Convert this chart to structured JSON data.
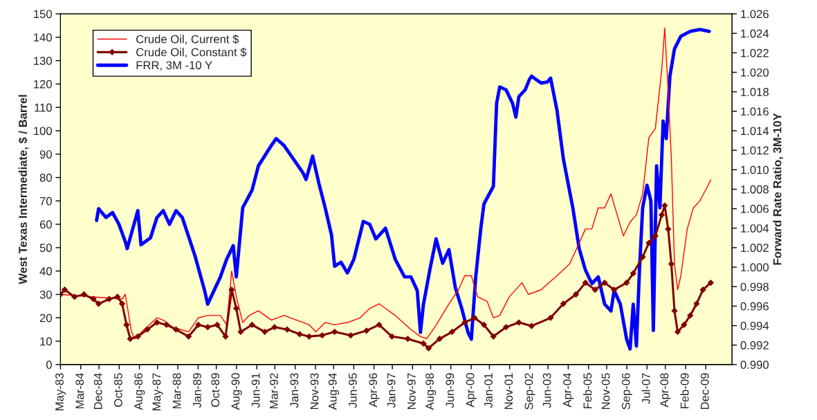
{
  "chart_data": {
    "type": "line",
    "ylabel": "West Texas Intermediate, $ / Barrel",
    "y2label": "Forward Rate Ratio, 3M-10Y",
    "series": [
      {
        "name": "Crude Oil, Current $",
        "color": "#ff0000",
        "marker": "none",
        "x": [
          "1983-05-01",
          "1985-11-14",
          "1986-01-01",
          "1986-04-04",
          "1986-05-21",
          "1986-10-11",
          "1987-04-22",
          "1987-07-26",
          "1987-12-16",
          "1988-08-10",
          "1989-01-04",
          "1989-05-25",
          "1989-12-02",
          "1990-03-05",
          "1990-05-21",
          "1990-07-29",
          "1990-11-03",
          "1991-02-07",
          "1991-06-27",
          "1992-01-08",
          "1992-07-15",
          "1993-01-22",
          "1993-07-29",
          "1993-11-07",
          "1994-03-27",
          "1994-08-17",
          "1995-02-25",
          "1995-09-05",
          "1996-01-26",
          "1996-06-16",
          "1996-09-20",
          "1997-02-14",
          "1997-10-08",
          "1998-02-28",
          "1998-06-02",
          "1998-10-26",
          "1999-05-03",
          "1999-09-23",
          "1999-12-27",
          "2000-04-04",
          "2000-07-08",
          "2000-11-28",
          "2001-03-02",
          "2001-06-05",
          "2001-10-28",
          "2002-05-07",
          "2002-08-10",
          "2003-02-17",
          "2003-10-15",
          "2004-04-22",
          "2004-09-13",
          "2004-12-16",
          "2005-03-23",
          "2005-06-27",
          "2005-10-01",
          "2006-01-04",
          "2006-04-08",
          "2006-07-11",
          "2006-10-19",
          "2007-01-22",
          "2007-04-26",
          "2007-07-28",
          "2007-11-03",
          "2008-02-07",
          "2008-03-23",
          "2008-05-14",
          "2008-07-01",
          "2008-08-17",
          "2008-10-04",
          "2008-11-21",
          "2009-02-25",
          "2009-05-28",
          "2009-09-02",
          "2009-12-05",
          "2010-02-14"
        ],
        "values": [
          30,
          28,
          30,
          14,
          11,
          15,
          20,
          19,
          16,
          14,
          20,
          21,
          21,
          17,
          40,
          29,
          18,
          21,
          23,
          19,
          21,
          19,
          17,
          14,
          18,
          17,
          18,
          20,
          24,
          26,
          24,
          21,
          15,
          12,
          11,
          17,
          26,
          32,
          38,
          38,
          29,
          27,
          20,
          21,
          29,
          35,
          30,
          32,
          38,
          43,
          52,
          58,
          58,
          67,
          67,
          73,
          64,
          55,
          61,
          64,
          73,
          97,
          101,
          126,
          144,
          117,
          88,
          43,
          32,
          38,
          58,
          67,
          70,
          75,
          79
        ]
      },
      {
        "name": "Crude Oil, Constant $",
        "color": "#800000",
        "marker": "diamond",
        "x": [
          "1983-05-01",
          "1983-07-04",
          "1983-11-28",
          "1984-04-19",
          "1984-09-09",
          "1984-11-25",
          "1985-05-03",
          "1985-09-05",
          "1985-11-14",
          "1986-01-19",
          "1986-03-16",
          "1986-07-08",
          "1986-11-28",
          "1987-04-22",
          "1987-09-13",
          "1988-02-03",
          "1988-08-10",
          "1989-01-04",
          "1989-05-25",
          "1989-10-15",
          "1990-02-17",
          "1990-05-21",
          "1990-07-29",
          "1990-10-04",
          "1991-03-23",
          "1991-10-01",
          "1992-02-25",
          "1992-09-02",
          "1993-03-09",
          "1993-07-29",
          "1994-02-10",
          "1994-08-17",
          "1995-04-15",
          "1995-12-09",
          "1996-06-16",
          "1996-12-27",
          "1997-08-21",
          "1998-04-15",
          "1998-07-01",
          "1998-12-13",
          "1999-06-20",
          "1999-12-27",
          "2000-05-21",
          "2000-10-11",
          "2001-03-02",
          "2001-09-09",
          "2002-03-20",
          "2002-09-27",
          "2003-07-11",
          "2004-01-19",
          "2004-07-26",
          "2004-12-16",
          "2005-05-10",
          "2005-10-01",
          "2006-02-21",
          "2006-08-28",
          "2006-12-05",
          "2007-04-26",
          "2007-07-28",
          "2007-11-03",
          "2008-02-07",
          "2008-03-23",
          "2008-05-14",
          "2008-07-01",
          "2008-08-17",
          "2008-10-04",
          "2009-01-08",
          "2009-04-11",
          "2009-07-15",
          "2009-10-19",
          "2010-02-14"
        ],
        "values": [
          30,
          32,
          29,
          30,
          28,
          26,
          28,
          29,
          26,
          17,
          11,
          12,
          15,
          18,
          17,
          15,
          12,
          17,
          16,
          17,
          12,
          32,
          24,
          14,
          17,
          14,
          16,
          15,
          13,
          12,
          12.5,
          14,
          12.5,
          14.5,
          17,
          12,
          11,
          9,
          7,
          11,
          14,
          18,
          20,
          17,
          12,
          16,
          18,
          16.5,
          20,
          26,
          30,
          35,
          32,
          35,
          32,
          35,
          39,
          46,
          52,
          55,
          64,
          68,
          58,
          43,
          23,
          14,
          17,
          21,
          26,
          32,
          35
        ]
      },
      {
        "name": "FRR, 3M -10 Y",
        "color": "#0000ff",
        "marker": "none",
        "axis": "y2",
        "x": [
          "1984-10-26",
          "1984-11-25",
          "1985-03-16",
          "1985-06-23",
          "1985-09-27",
          "1986-01-01",
          "1986-01-29",
          "1986-07-08",
          "1986-08-25",
          "1987-01-15",
          "1987-04-22",
          "1987-07-26",
          "1987-10-28",
          "1988-02-03",
          "1988-05-07",
          "1988-11-17",
          "1989-04-08",
          "1989-05-25",
          "1989-08-28",
          "1989-12-02",
          "1990-03-05",
          "1990-06-13",
          "1990-07-29",
          "1990-11-03",
          "1991-03-23",
          "1991-06-27",
          "1992-01-08",
          "1992-03-20",
          "1992-07-15",
          "1992-12-05",
          "1993-04-26",
          "1993-06-13",
          "1993-09-20",
          "1993-12-23",
          "1994-03-27",
          "1994-07-01",
          "1994-08-17",
          "1994-11-21",
          "1995-02-25",
          "1995-06-02",
          "1995-10-22",
          "1996-01-26",
          "1996-04-28",
          "1996-09-20",
          "1997-02-14",
          "1997-07-04",
          "1997-10-08",
          "1998-01-11",
          "1998-02-28",
          "1998-04-15",
          "1998-07-19",
          "1998-10-22",
          "1999-01-28",
          "1999-05-03",
          "1999-08-07",
          "1999-11-10",
          "2000-02-14",
          "2000-04-04",
          "2000-06-09",
          "2000-08-25",
          "2000-10-11",
          "2001-03-02",
          "2001-04-19",
          "2001-06-05",
          "2001-09-09",
          "2001-12-16",
          "2002-02-03",
          "2002-03-20",
          "2002-06-23",
          "2002-08-28",
          "2002-09-27",
          "2003-02-17",
          "2003-05-21",
          "2003-07-11",
          "2003-10-15",
          "2004-01-19",
          "2004-06-09",
          "2004-09-13",
          "2004-12-16",
          "2005-03-23",
          "2005-06-27",
          "2005-10-01",
          "2006-01-04",
          "2006-02-21",
          "2006-05-25",
          "2006-08-28",
          "2006-10-19",
          "2006-12-05",
          "2007-01-22",
          "2007-03-09",
          "2007-04-26",
          "2007-07-01",
          "2007-08-28",
          "2007-10-04",
          "2007-11-21",
          "2008-01-11",
          "2008-02-28",
          "2008-04-15",
          "2008-06-09",
          "2008-08-17",
          "2008-11-21",
          "2009-04-11",
          "2009-09-02",
          "2010-01-22"
        ],
        "values": [
          1.0048,
          1.006,
          1.0051,
          1.0056,
          1.0044,
          1.0026,
          1.0019,
          1.0058,
          1.0023,
          1.003,
          1.0051,
          1.0058,
          1.0044,
          1.0058,
          1.0051,
          1.0011,
          0.9976,
          0.9962,
          0.9976,
          0.999,
          1.0008,
          1.0022,
          0.999,
          1.0061,
          1.0079,
          1.0104,
          1.0125,
          1.0132,
          1.0125,
          1.0111,
          1.0097,
          1.009,
          1.0114,
          1.0086,
          1.0061,
          1.0033,
          1.0001,
          1.0005,
          0.9994,
          1.0008,
          1.0047,
          1.0044,
          1.0029,
          1.004,
          1.0008,
          0.999,
          0.999,
          0.9976,
          0.9933,
          0.9962,
          0.9997,
          1.0029,
          1.0004,
          1.0018,
          0.9979,
          0.9958,
          0.9933,
          0.9926,
          0.999,
          1.004,
          1.0065,
          1.0083,
          1.0168,
          1.0185,
          1.0182,
          1.0168,
          1.0154,
          1.0175,
          1.0182,
          1.0193,
          1.0196,
          1.0189,
          1.019,
          1.0194,
          1.0161,
          1.0111,
          1.0061,
          1.0019,
          0.9997,
          0.9983,
          0.999,
          0.9962,
          0.9955,
          0.9976,
          0.9962,
          0.9926,
          0.9916,
          0.9962,
          0.9919,
          0.9997,
          1.0061,
          1.0084,
          1.0068,
          0.9935,
          1.0104,
          1.0061,
          1.015,
          1.0132,
          1.0196,
          1.0224,
          1.0237,
          1.0242,
          1.0244,
          1.0242
        ]
      }
    ],
    "xlim": [
      "1983-05-01",
      "2010-12-31"
    ],
    "xticks": [
      {
        "value": "1983-05-01",
        "label": "May-83"
      },
      {
        "value": "1984-03-01",
        "label": "Mar-84"
      },
      {
        "value": "1984-12-01",
        "label": "Dec-84"
      },
      {
        "value": "1985-10-01",
        "label": "Oct-85"
      },
      {
        "value": "1986-08-01",
        "label": "Aug-86"
      },
      {
        "value": "1987-05-01",
        "label": "May-87"
      },
      {
        "value": "1988-03-01",
        "label": "Mar-88"
      },
      {
        "value": "1989-01-01",
        "label": "Jan-89"
      },
      {
        "value": "1989-10-01",
        "label": "Oct-89"
      },
      {
        "value": "1990-08-01",
        "label": "Aug-90"
      },
      {
        "value": "1991-06-01",
        "label": "Jun-91"
      },
      {
        "value": "1992-03-01",
        "label": "Mar-92"
      },
      {
        "value": "1993-01-01",
        "label": "Jan-93"
      },
      {
        "value": "1993-11-01",
        "label": "Nov-93"
      },
      {
        "value": "1994-08-01",
        "label": "Aug-94"
      },
      {
        "value": "1995-06-01",
        "label": "Jun-95"
      },
      {
        "value": "1996-04-01",
        "label": "Apr-96"
      },
      {
        "value": "1997-01-01",
        "label": "Jan-97"
      },
      {
        "value": "1997-11-01",
        "label": "Nov-97"
      },
      {
        "value": "1998-08-01",
        "label": "Aug-98"
      },
      {
        "value": "1999-06-01",
        "label": "Jun-99"
      },
      {
        "value": "2000-04-01",
        "label": "Apr-00"
      },
      {
        "value": "2001-01-01",
        "label": "Jan-01"
      },
      {
        "value": "2001-11-01",
        "label": "Nov-01"
      },
      {
        "value": "2002-09-01",
        "label": "Sep-02"
      },
      {
        "value": "2003-06-01",
        "label": "Jun-03"
      },
      {
        "value": "2004-04-01",
        "label": "Apr-04"
      },
      {
        "value": "2005-02-01",
        "label": "Feb-05"
      },
      {
        "value": "2005-11-01",
        "label": "Nov-05"
      },
      {
        "value": "2006-09-01",
        "label": "Sep-06"
      },
      {
        "value": "2007-07-01",
        "label": "Jul-07"
      },
      {
        "value": "2008-04-01",
        "label": "Apr-08"
      },
      {
        "value": "2009-02-01",
        "label": "Feb-09"
      },
      {
        "value": "2009-12-01",
        "label": "Dec-09"
      }
    ],
    "ylim": [
      0,
      150
    ],
    "yticks": [
      0,
      10,
      20,
      30,
      40,
      50,
      60,
      70,
      80,
      90,
      100,
      110,
      120,
      130,
      140,
      150
    ],
    "y2lim": [
      0.99,
      1.026
    ],
    "y2ticks": [
      {
        "value": 0.99,
        "label": "0.990"
      },
      {
        "value": 0.992,
        "label": "0.992"
      },
      {
        "value": 0.994,
        "label": "0.994"
      },
      {
        "value": 0.996,
        "label": "0.996"
      },
      {
        "value": 0.998,
        "label": "0.998"
      },
      {
        "value": 1.0,
        "label": "1.000"
      },
      {
        "value": 1.002,
        "label": "1.002"
      },
      {
        "value": 1.004,
        "label": "1.004"
      },
      {
        "value": 1.006,
        "label": "1.006"
      },
      {
        "value": 1.008,
        "label": "1.008"
      },
      {
        "value": 1.01,
        "label": "1.010"
      },
      {
        "value": 1.012,
        "label": "1.012"
      },
      {
        "value": 1.014,
        "label": "1.014"
      },
      {
        "value": 1.016,
        "label": "1.016"
      },
      {
        "value": 1.018,
        "label": "1.018"
      },
      {
        "value": 1.02,
        "label": "1.020"
      },
      {
        "value": 1.022,
        "label": "1.022"
      },
      {
        "value": 1.024,
        "label": "1.024"
      },
      {
        "value": 1.026,
        "label": "1.026"
      }
    ],
    "legend": "top left",
    "line_style": "solid"
  }
}
